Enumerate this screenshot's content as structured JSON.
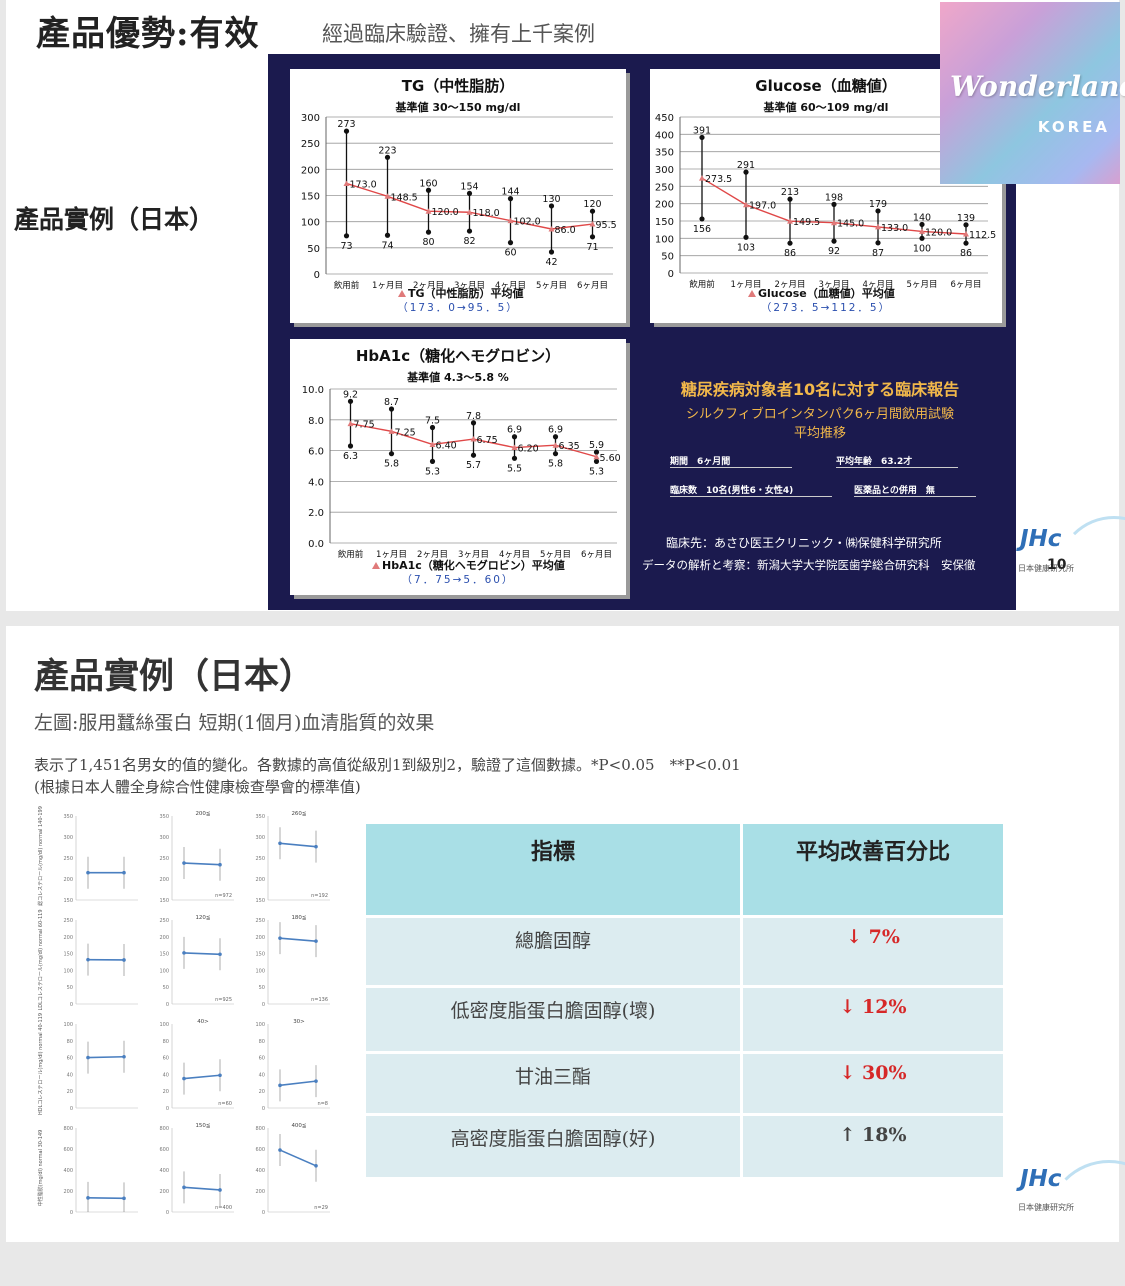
{
  "slide1": {
    "title": "產品優勢:有效",
    "subtitle": "經過臨床驗證、擁有上千案例",
    "left_label": "產品實例（日本）",
    "watermark": {
      "title": "Wonderland",
      "sub": "KOREA"
    },
    "report": {
      "heading": "糖尿疾病対象者10名に対する臨床報告",
      "line1": "シルクフィブロインタンパク6ヶ月間飲用試験",
      "line2": "平均推移",
      "period": "期間　6ヶ月間",
      "age": "平均年齢　63.2才",
      "count": "臨床数　10名(男性6・女性4)",
      "combo": "医薬品との併用　無",
      "clinic": "臨床先：あさひ医王クリニック・㈱保健科学研究所",
      "analysis": "データの解析と考察：新潟大学大学院医歯学総合研究科　安保徹"
    },
    "page_number": "10",
    "jhc": {
      "logo": "JHc",
      "name": "日本健康研究所"
    }
  },
  "slide2": {
    "title": "產品實例（日本）",
    "line1": "左圖:服用蠶絲蛋白 短期(1個月)血清脂質的效果",
    "line2": "表示了1,451名男女的值的變化。各數據的高值從級別1到級別2，驗證了這個數據。*P<0.05　**P<0.01",
    "line3": "(根據日本人體全身綜合性健康檢查學會的標準值)",
    "table": {
      "headers": [
        "指標",
        "平均改善百分比"
      ],
      "rows": [
        {
          "label": "總膽固醇",
          "value": "↓ 7%",
          "color": "#d62828"
        },
        {
          "label": "低密度脂蛋白膽固醇(壞)",
          "value": "↓ 12%",
          "color": "#d62828"
        },
        {
          "label": "甘油三酯",
          "value": "↓ 30%",
          "color": "#d62828"
        },
        {
          "label": "高密度脂蛋白膽固醇(好)",
          "value": "↑ 18%",
          "color": "#444444"
        }
      ]
    },
    "jhc": {
      "logo": "JHc",
      "name": "日本健康研究所"
    },
    "mini_grid": {
      "rows": [
        {
          "ylabel": "総コレステロール(mg/dl) normal 140-199",
          "ticks": [
            "350",
            "300",
            "250",
            "200",
            "150"
          ],
          "cells": [
            {
              "label": "",
              "n": ""
            },
            {
              "label": "200≦",
              "n": "n=972"
            },
            {
              "label": "260≦",
              "n": "n=192"
            }
          ]
        },
        {
          "ylabel": "LDLコレステロール(mg/dl) normal 60-119",
          "ticks": [
            "250",
            "200",
            "150",
            "100",
            "50",
            "0"
          ],
          "cells": [
            {
              "label": "",
              "n": ""
            },
            {
              "label": "120≦",
              "n": "n=925"
            },
            {
              "label": "180≦",
              "n": "n=136"
            }
          ]
        },
        {
          "ylabel": "HDLコレステロール(mg/dl) normal 40-119",
          "ticks": [
            "100",
            "80",
            "60",
            "40",
            "20",
            "0"
          ],
          "cells": [
            {
              "label": "",
              "n": ""
            },
            {
              "label": "40>",
              "n": "n=60"
            },
            {
              "label": "30>",
              "n": "n=8"
            }
          ]
        },
        {
          "ylabel": "中性脂肪(mg/dl) normal 30-149",
          "ticks": [
            "800",
            "600",
            "400",
            "200",
            "0"
          ],
          "cells": [
            {
              "label": "",
              "n": ""
            },
            {
              "label": "150≦",
              "n": "n=400"
            },
            {
              "label": "400≦",
              "n": "n=29"
            }
          ]
        }
      ]
    }
  },
  "chart_data": [
    {
      "type": "line",
      "title": "TG（中性脂肪）",
      "subtitle": "基準値 30～150 mg/dl",
      "categories": [
        "飲用前",
        "1ヶ月目",
        "2ヶ月目",
        "3ヶ月目",
        "4ヶ月目",
        "5ヶ月目",
        "6ヶ月目"
      ],
      "series": [
        {
          "name": "TG（中性脂肪）平均値",
          "values": [
            173.0,
            148.5,
            120.0,
            118.0,
            102.0,
            86.0,
            95.5
          ]
        }
      ],
      "high": [
        273,
        223,
        160,
        154,
        144,
        130,
        120
      ],
      "low": [
        73,
        74,
        80,
        82,
        60,
        42,
        71
      ],
      "ylim": [
        0,
        300
      ],
      "yticks": [
        0,
        50,
        100,
        150,
        200,
        250,
        300
      ],
      "legend_note": "（173．0→95．5）"
    },
    {
      "type": "line",
      "title": "Glucose（血糖値）",
      "subtitle": "基準値 60～109 mg/dl",
      "categories": [
        "飲用前",
        "1ヶ月目",
        "2ヶ月目",
        "3ヶ月目",
        "4ヶ月目",
        "5ヶ月目",
        "6ヶ月目"
      ],
      "series": [
        {
          "name": "Glucose（血糖値）平均値",
          "values": [
            273.5,
            197.0,
            149.5,
            145.0,
            133.0,
            120.0,
            112.5
          ]
        }
      ],
      "high": [
        391,
        291,
        213,
        198,
        179,
        140,
        139
      ],
      "low": [
        156,
        103,
        86,
        92,
        87,
        100,
        86
      ],
      "ylim": [
        0,
        450
      ],
      "yticks": [
        0,
        50,
        100,
        150,
        200,
        250,
        300,
        350,
        400,
        450
      ],
      "legend_note": "（273．5→112．5）"
    },
    {
      "type": "line",
      "title": "HbA1c（糖化ヘモグロビン）",
      "subtitle": "基準値 4.3～5.8 %",
      "categories": [
        "飲用前",
        "1ヶ月目",
        "2ヶ月目",
        "3ヶ月目",
        "4ヶ月目",
        "5ヶ月目",
        "6ヶ月目"
      ],
      "series": [
        {
          "name": "HbA1c（糖化ヘモグロビン）平均値",
          "values": [
            7.75,
            7.25,
            6.4,
            6.75,
            6.2,
            6.35,
            5.6
          ]
        }
      ],
      "high": [
        9.2,
        8.7,
        7.5,
        7.8,
        6.9,
        6.9,
        5.9
      ],
      "low": [
        6.3,
        5.8,
        5.3,
        5.7,
        5.5,
        5.8,
        5.3
      ],
      "ylim": [
        0,
        10
      ],
      "yticks": [
        "0.0",
        "2.0",
        "4.0",
        "6.0",
        "8.0",
        "10.0"
      ],
      "legend_note": "（7．75→5．60）"
    },
    {
      "type": "line",
      "title": "",
      "mini_series": [
        {
          "before": 215,
          "after": 215,
          "ylim": [
            150,
            350
          ]
        },
        {
          "before": 238,
          "after": 234,
          "ylim": [
            150,
            350
          ]
        },
        {
          "before": 285,
          "after": 277,
          "ylim": [
            150,
            350
          ]
        },
        {
          "before": 132,
          "after": 131,
          "ylim": [
            0,
            250
          ]
        },
        {
          "before": 152,
          "after": 148,
          "ylim": [
            0,
            250
          ]
        },
        {
          "before": 196,
          "after": 187,
          "ylim": [
            0,
            250
          ]
        },
        {
          "before": 60,
          "after": 61,
          "ylim": [
            0,
            100
          ]
        },
        {
          "before": 35,
          "after": 39,
          "ylim": [
            0,
            100
          ]
        },
        {
          "before": 27,
          "after": 32,
          "ylim": [
            0,
            100
          ]
        },
        {
          "before": 135,
          "after": 130,
          "ylim": [
            0,
            800
          ]
        },
        {
          "before": 235,
          "after": 210,
          "ylim": [
            0,
            800
          ]
        },
        {
          "before": 590,
          "after": 440,
          "ylim": [
            0,
            800
          ]
        }
      ]
    }
  ]
}
